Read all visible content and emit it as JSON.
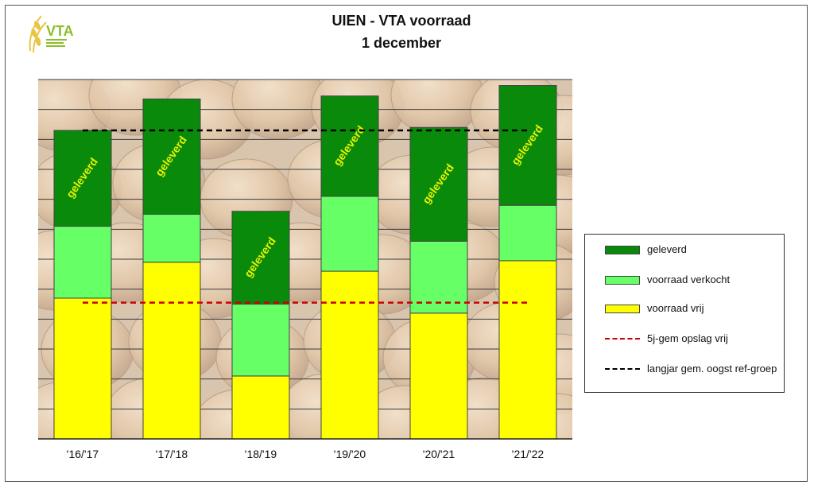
{
  "logo": {
    "text": "VTA",
    "icon": "wheat-logo-icon",
    "color": "#8bbf2a"
  },
  "chart_data": {
    "type": "bar",
    "stacked": true,
    "title": "UIEN - VTA voorraad",
    "subtitle": "1 december",
    "categories": [
      "'16/'17",
      "'17/'18",
      "'18/'19",
      "'19/'20",
      "'20/'21",
      "'21/'22"
    ],
    "series": [
      {
        "name": "voorraad vrij",
        "color": "#ffff00",
        "values": [
          47,
          59,
          21,
          56,
          42,
          59.5
        ]
      },
      {
        "name": "voorraad verkocht",
        "color": "#66ff66",
        "values": [
          24,
          16,
          24,
          25,
          24,
          18.5
        ]
      },
      {
        "name": "geleverd",
        "color": "#0a8a0a",
        "values": [
          32,
          38.5,
          31,
          33.5,
          38,
          40
        ]
      }
    ],
    "bar_label": "geleverd",
    "bar_label_color": "#e6f200",
    "reference_lines": [
      {
        "name": "5j-gem opslag vrij",
        "value": 45.5,
        "color": "#cc0000"
      },
      {
        "name": "langjar gem. oogst ref-groep",
        "value": 103,
        "color": "#000000"
      }
    ],
    "ylim": [
      0,
      120
    ],
    "grid": true,
    "legend_position": "right",
    "background": "onions"
  },
  "legend": {
    "items": [
      {
        "label": "geleverd",
        "kind": "box",
        "color": "#0a8a0a"
      },
      {
        "label": "voorraad verkocht",
        "kind": "box",
        "color": "#66ff66"
      },
      {
        "label": "voorraad vrij",
        "kind": "box",
        "color": "#ffff00"
      },
      {
        "label": "5j-gem opslag vrij",
        "kind": "line",
        "color": "#cc0000"
      },
      {
        "label": "langjar gem. oogst ref-groep",
        "kind": "line",
        "color": "#000000"
      }
    ]
  }
}
